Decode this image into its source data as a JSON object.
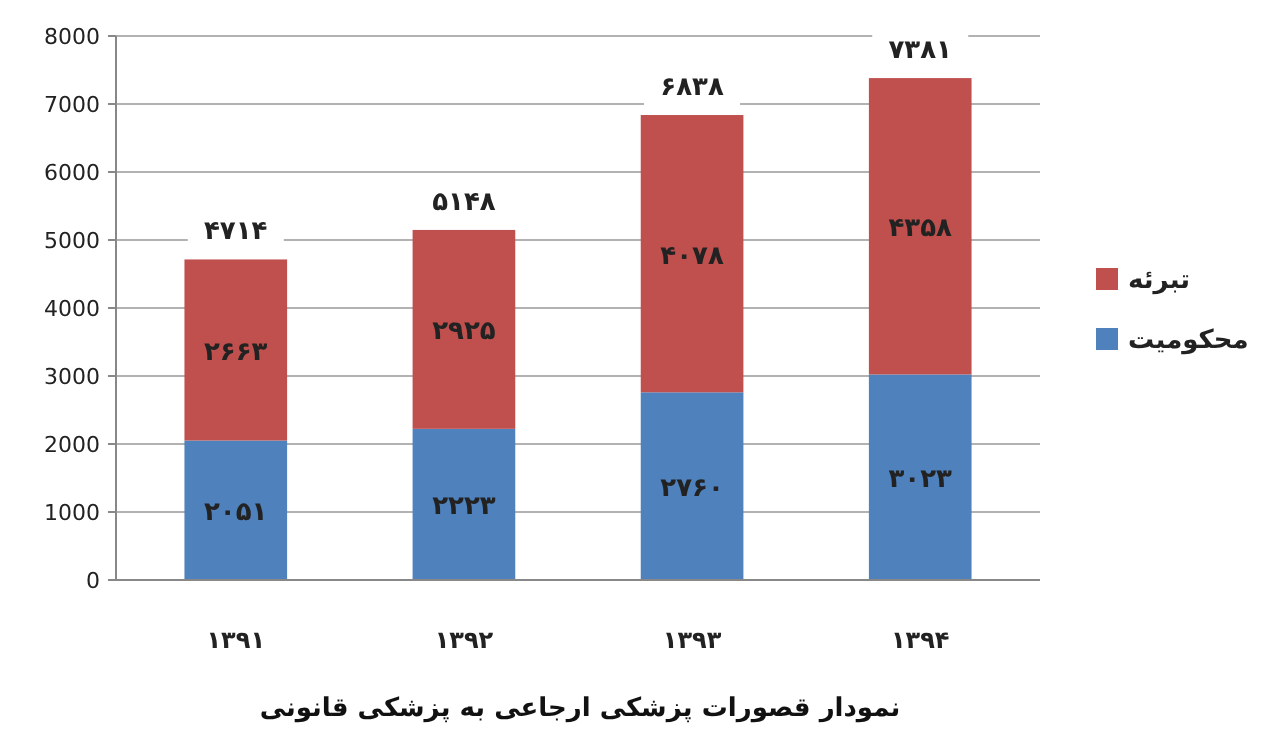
{
  "chart_data": {
    "type": "bar",
    "stacked": true,
    "title": "نمودار قصورات پزشکی ارجاعی به پزشکی قانونی",
    "categories": [
      "۱۳۹۱",
      "۱۳۹۲",
      "۱۳۹۳",
      "۱۳۹۴"
    ],
    "series": [
      {
        "name": "محکومیت",
        "color": "#4f81bd",
        "values": [
          2051,
          2223,
          2760,
          3023
        ],
        "value_labels": [
          "۲۰۵۱",
          "۲۲۲۳",
          "۲۷۶۰",
          "۳۰۲۳"
        ]
      },
      {
        "name": "تبرئه",
        "color": "#c0504d",
        "values": [
          2663,
          2925,
          4078,
          4358
        ],
        "value_labels": [
          "۲۶۶۳",
          "۲۹۲۵",
          "۴۰۷۸",
          "۴۳۵۸"
        ]
      }
    ],
    "totals": [
      "۴۷۱۴",
      "۵۱۴۸",
      "۶۸۳۸",
      "۷۳۸۱"
    ],
    "ylim": [
      0,
      8000
    ],
    "yticks": [
      0,
      1000,
      2000,
      3000,
      4000,
      5000,
      6000,
      7000,
      8000
    ],
    "grid": "y",
    "legend": "right"
  }
}
